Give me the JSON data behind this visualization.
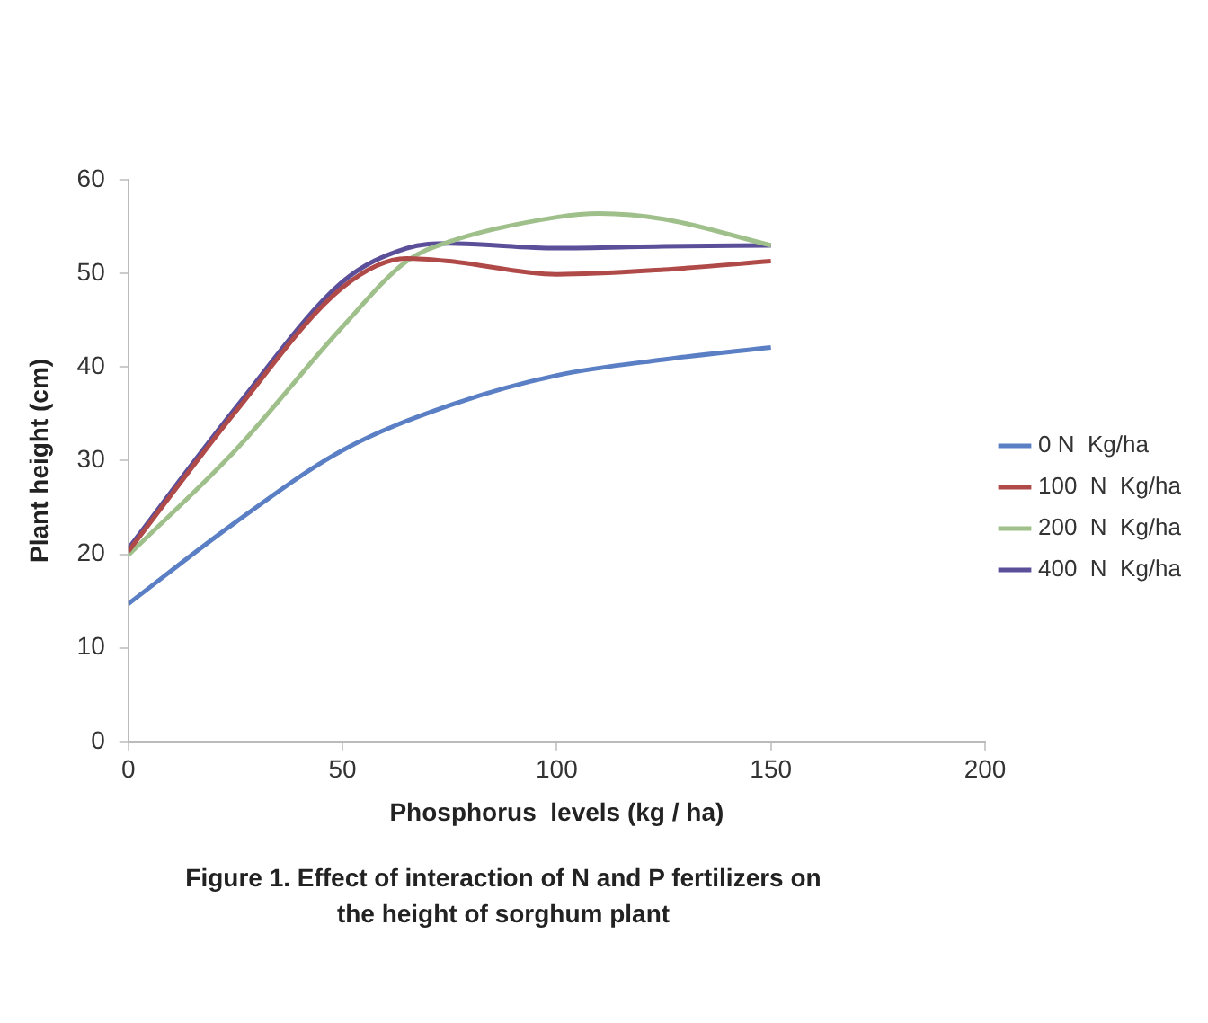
{
  "chart_data": {
    "type": "line",
    "xlabel": "Phosphorus  levels (kg / ha)",
    "ylabel": "Plant height (cm)",
    "xlim": [
      0,
      200
    ],
    "xticks": [
      0,
      50,
      100,
      150,
      200
    ],
    "ylim": [
      0,
      60
    ],
    "yticks": [
      0,
      10,
      20,
      30,
      40,
      50,
      60
    ],
    "grid": false,
    "legend": "right",
    "marker": "none",
    "line_style": "solid",
    "series": [
      {
        "name": "0 N  Kg/ha",
        "color": "#5b7fc4",
        "x": [
          0,
          25,
          50,
          75,
          100,
          125,
          150
        ],
        "values": [
          14.7,
          23.4,
          31.1,
          35.9,
          39.1,
          40.8,
          42.1
        ]
      },
      {
        "name": "100  N  Kg/ha",
        "color": "#b04a48",
        "x": [
          0,
          25,
          50,
          65,
          75,
          100,
          125,
          150
        ],
        "values": [
          20.3,
          35.2,
          48.5,
          51.6,
          51.3,
          49.9,
          50.4,
          51.3
        ]
      },
      {
        "name": "200  N  Kg/ha",
        "color": "#9fc08a",
        "x": [
          0,
          25,
          50,
          65,
          75,
          100,
          110,
          125,
          150
        ],
        "values": [
          19.9,
          31.1,
          44.3,
          51.3,
          53.4,
          56.0,
          56.4,
          55.8,
          53.0
        ]
      },
      {
        "name": "400  N  Kg/ha",
        "color": "#5b4f9a",
        "x": [
          0,
          25,
          50,
          65,
          75,
          100,
          125,
          150
        ],
        "values": [
          20.6,
          35.6,
          49.1,
          52.7,
          53.2,
          52.7,
          52.9,
          53.0
        ]
      }
    ],
    "annotations": [
      "Figure 1. Effect of  interaction of N and P fertilizers on\nthe height of sorghum plant"
    ]
  }
}
